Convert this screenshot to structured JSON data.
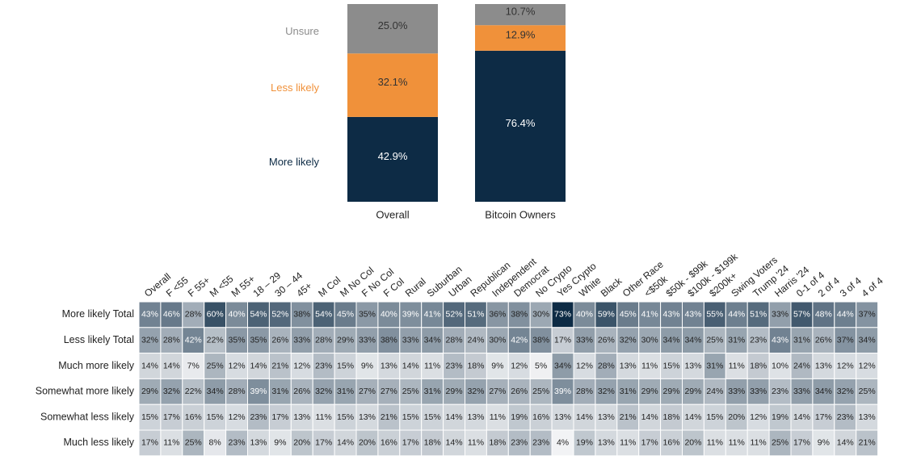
{
  "chart_data": [
    {
      "type": "bar",
      "stacked": true,
      "categories": [
        "Overall",
        "Bitcoin Owners"
      ],
      "ylim": [
        0,
        100
      ],
      "series": [
        {
          "name": "More likely",
          "color": "#0d2b45",
          "values": [
            42.9,
            76.4
          ],
          "value_labels": [
            "42.9%",
            "76.4%"
          ]
        },
        {
          "name": "Less likely",
          "color": "#f0913a",
          "values": [
            32.1,
            12.9
          ],
          "value_labels": [
            "32.1%",
            "12.9%"
          ]
        },
        {
          "name": "Unsure",
          "color": "#8c8c8c",
          "values": [
            25.0,
            10.7
          ],
          "value_labels": [
            "25.0%",
            "10.7%"
          ]
        }
      ]
    },
    {
      "type": "heatmap",
      "colors": [
        "#f2f3f5",
        "#0d2b45"
      ],
      "categories": [
        "Overall",
        "F <55",
        "F 55+",
        "M <55",
        "M 55+",
        "18 – 29",
        "30 – 44",
        "45+",
        "M Col",
        "M No Col",
        "F No Col",
        "F Col",
        "Rural",
        "Suburban",
        "Urban",
        "Republican",
        "Independent",
        "Democrat",
        "No Crypto",
        "Yes Crypto",
        "White",
        "Black",
        "Other Race",
        "<$50k",
        "$50k - $99k",
        "$100k - $199k",
        "$200k+",
        "Swing Voters",
        "Trump '24",
        "Harris '24",
        "0-1 of 4",
        "2 of 4",
        "3 of 4",
        "4 of 4"
      ],
      "rows": [
        "More likely Total",
        "Less likely Total",
        "Much more likely",
        "Somewhat more likely",
        "Somewhat less likely",
        "Much less likely"
      ],
      "values": [
        [
          43,
          46,
          28,
          60,
          40,
          54,
          52,
          38,
          54,
          45,
          35,
          40,
          39,
          41,
          52,
          51,
          36,
          38,
          30,
          73,
          40,
          59,
          45,
          41,
          43,
          43,
          55,
          44,
          51,
          33,
          57,
          48,
          44,
          37
        ],
        [
          32,
          28,
          42,
          22,
          35,
          35,
          26,
          33,
          28,
          29,
          33,
          38,
          33,
          34,
          28,
          24,
          30,
          42,
          38,
          17,
          33,
          26,
          32,
          30,
          34,
          34,
          25,
          31,
          23,
          43,
          31,
          26,
          37,
          34
        ],
        [
          14,
          14,
          7,
          25,
          12,
          14,
          21,
          12,
          23,
          15,
          9,
          13,
          14,
          11,
          23,
          18,
          9,
          12,
          5,
          34,
          12,
          28,
          13,
          11,
          15,
          13,
          31,
          11,
          18,
          10,
          24,
          13,
          12,
          12
        ],
        [
          29,
          32,
          22,
          34,
          28,
          39,
          31,
          26,
          32,
          31,
          27,
          27,
          25,
          31,
          29,
          32,
          27,
          26,
          25,
          39,
          28,
          32,
          31,
          29,
          29,
          29,
          24,
          33,
          33,
          23,
          33,
          34,
          32,
          25
        ],
        [
          15,
          17,
          16,
          15,
          12,
          23,
          17,
          13,
          11,
          15,
          13,
          21,
          15,
          15,
          14,
          13,
          11,
          19,
          16,
          13,
          14,
          13,
          21,
          14,
          18,
          14,
          15,
          20,
          12,
          19,
          14,
          17,
          23,
          13
        ],
        [
          17,
          11,
          25,
          8,
          23,
          13,
          9,
          20,
          17,
          14,
          20,
          16,
          17,
          18,
          14,
          11,
          18,
          23,
          23,
          4,
          19,
          13,
          11,
          17,
          16,
          20,
          11,
          11,
          11,
          25,
          17,
          9,
          14,
          21
        ]
      ],
      "value_labels": [
        [
          "43%",
          "46%",
          "28%",
          "60%",
          "40%",
          "54%",
          "52%",
          "38%",
          "54%",
          "45%",
          "35%",
          "40%",
          "39%",
          "41%",
          "52%",
          "51%",
          "36%",
          "38%",
          "30%",
          "73%",
          "40%",
          "59%",
          "45%",
          "41%",
          "43%",
          "43%",
          "55%",
          "44%",
          "51%",
          "33%",
          "57%",
          "48%",
          "44%",
          "37%"
        ],
        [
          "32%",
          "28%",
          "42%",
          "22%",
          "35%",
          "35%",
          "26%",
          "33%",
          "28%",
          "29%",
          "33%",
          "38%",
          "33%",
          "34%",
          "28%",
          "24%",
          "30%",
          "42%",
          "38%",
          "17%",
          "33%",
          "26%",
          "32%",
          "30%",
          "34%",
          "34%",
          "25%",
          "31%",
          "23%",
          "43%",
          "31%",
          "26%",
          "37%",
          "34%"
        ],
        [
          "14%",
          "14%",
          "7%",
          "25%",
          "12%",
          "14%",
          "21%",
          "12%",
          "23%",
          "15%",
          "9%",
          "13%",
          "14%",
          "11%",
          "23%",
          "18%",
          "9%",
          "12%",
          "5%",
          "34%",
          "12%",
          "28%",
          "13%",
          "11%",
          "15%",
          "13%",
          "31%",
          "11%",
          "18%",
          "10%",
          "24%",
          "13%",
          "12%",
          "12%"
        ],
        [
          "29%",
          "32%",
          "22%",
          "34%",
          "28%",
          "39%",
          "31%",
          "26%",
          "32%",
          "31%",
          "27%",
          "27%",
          "25%",
          "31%",
          "29%",
          "32%",
          "27%",
          "26%",
          "25%",
          "39%",
          "28%",
          "32%",
          "31%",
          "29%",
          "29%",
          "29%",
          "24%",
          "33%",
          "33%",
          "23%",
          "33%",
          "34%",
          "32%",
          "25%"
        ],
        [
          "15%",
          "17%",
          "16%",
          "15%",
          "12%",
          "23%",
          "17%",
          "13%",
          "11%",
          "15%",
          "13%",
          "21%",
          "15%",
          "15%",
          "14%",
          "13%",
          "11%",
          "19%",
          "16%",
          "13%",
          "14%",
          "13%",
          "21%",
          "14%",
          "18%",
          "14%",
          "15%",
          "20%",
          "12%",
          "19%",
          "14%",
          "17%",
          "23%",
          "13%"
        ],
        [
          "17%",
          "11%",
          "25%",
          "8%",
          "23%",
          "13%",
          "9%",
          "20%",
          "17%",
          "14%",
          "20%",
          "16%",
          "17%",
          "18%",
          "14%",
          "11%",
          "18%",
          "23%",
          "23%",
          "4%",
          "19%",
          "13%",
          "11%",
          "17%",
          "16%",
          "20%",
          "11%",
          "11%",
          "11%",
          "25%",
          "17%",
          "9%",
          "14%",
          "21%"
        ]
      ]
    }
  ]
}
